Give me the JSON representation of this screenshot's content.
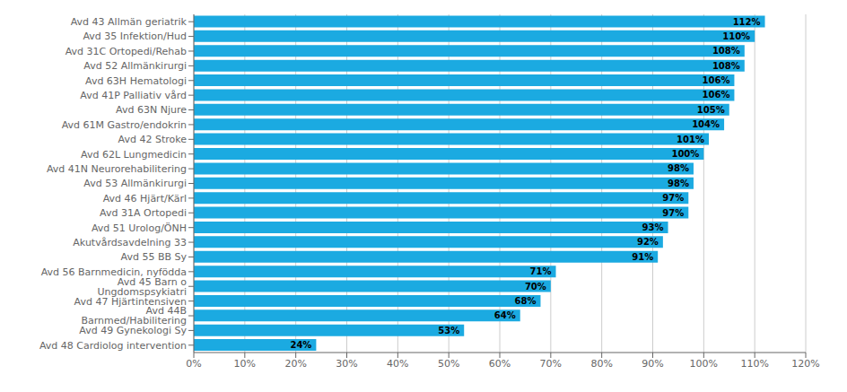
{
  "chart_data": {
    "type": "bar",
    "orientation": "horizontal",
    "categories": [
      "Avd 43 Allmän geriatrik",
      "Avd 35 Infektion/Hud",
      "Avd 31C Ortopedi/Rehab",
      "Avd 52 Allmänkirurgi",
      "Avd 63H Hematologi",
      "Avd 41P Palliativ vård",
      "Avd 63N Njure",
      "Avd 61M Gastro/endokrin",
      "Avd 42 Stroke",
      "Avd 62L Lungmedicin",
      "Avd 41N Neurorehabilitering",
      "Avd 53 Allmänkirurgi",
      "Avd 46 Hjärt/Kärl",
      "Avd 31A Ortopedi",
      "Avd 51 Urolog/ÖNH",
      "Akutvårdsavdelning 33",
      "Avd 55 BB Sy",
      "Avd 56 Barnmedicin, nyfödda",
      "Avd 45 Barn o Ungdomspsykiatri",
      "Avd 47 Hjärtintensiven",
      "Avd 44B Barnmed/Habilitering",
      "Avd 49 Gynekologi Sy",
      "Avd 48 Cardiolog intervention"
    ],
    "values": [
      112,
      110,
      108,
      108,
      106,
      106,
      105,
      104,
      101,
      100,
      98,
      98,
      97,
      97,
      93,
      92,
      91,
      71,
      70,
      68,
      64,
      53,
      24
    ],
    "value_labels": [
      "112%",
      "110%",
      "108%",
      "108%",
      "106%",
      "106%",
      "105%",
      "104%",
      "101%",
      "100%",
      "98%",
      "98%",
      "97%",
      "97%",
      "93%",
      "92%",
      "91%",
      "71%",
      "70%",
      "68%",
      "64%",
      "53%",
      "24%"
    ],
    "color": "#1BAAE1",
    "data_labels": true,
    "grid": true,
    "xlim": [
      0,
      120
    ],
    "xticks": [
      {
        "value": 0,
        "label": "0%"
      },
      {
        "value": 10,
        "label": "10%"
      },
      {
        "value": 20,
        "label": "20%"
      },
      {
        "value": 30,
        "label": "30%"
      },
      {
        "value": 40,
        "label": "40%"
      },
      {
        "value": 50,
        "label": "50%"
      },
      {
        "value": 60,
        "label": "60%"
      },
      {
        "value": 70,
        "label": "70%"
      },
      {
        "value": 80,
        "label": "80%"
      },
      {
        "value": 90,
        "label": "90%"
      },
      {
        "value": 100,
        "label": "100%"
      },
      {
        "value": 110,
        "label": "110%"
      },
      {
        "value": 120,
        "label": "120%"
      }
    ]
  }
}
